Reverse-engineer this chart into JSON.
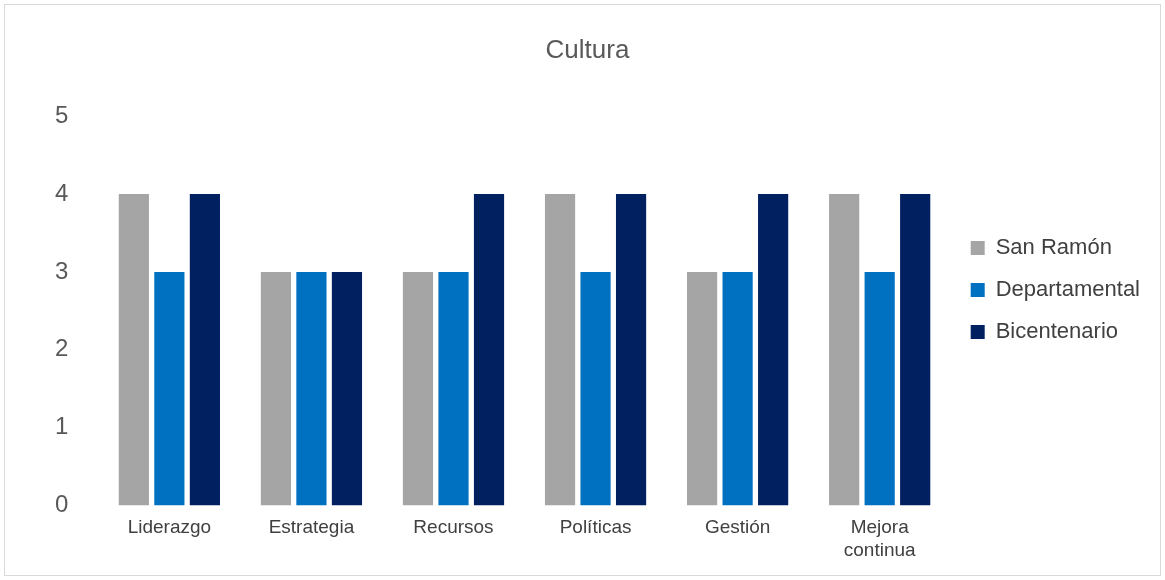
{
  "chart_data": {
    "type": "bar",
    "title": "Cultura",
    "categories": [
      "Liderazgo",
      "Estrategia",
      "Recursos",
      "Políticas",
      "Gestión",
      "Mejora continua"
    ],
    "series": [
      {
        "name": "San Ramón",
        "color": "#a5a5a5",
        "values": [
          4,
          3,
          3,
          4,
          3,
          4
        ]
      },
      {
        "name": "Departamental",
        "color": "#0070c0",
        "values": [
          3,
          3,
          3,
          3,
          3,
          3
        ]
      },
      {
        "name": "Bicentenario",
        "color": "#002060",
        "values": [
          4,
          3,
          4,
          4,
          4,
          4
        ]
      }
    ],
    "ylim": [
      0,
      5
    ],
    "yticks": [
      0,
      1,
      2,
      3,
      4,
      5
    ],
    "grid": false,
    "legend": "right"
  }
}
